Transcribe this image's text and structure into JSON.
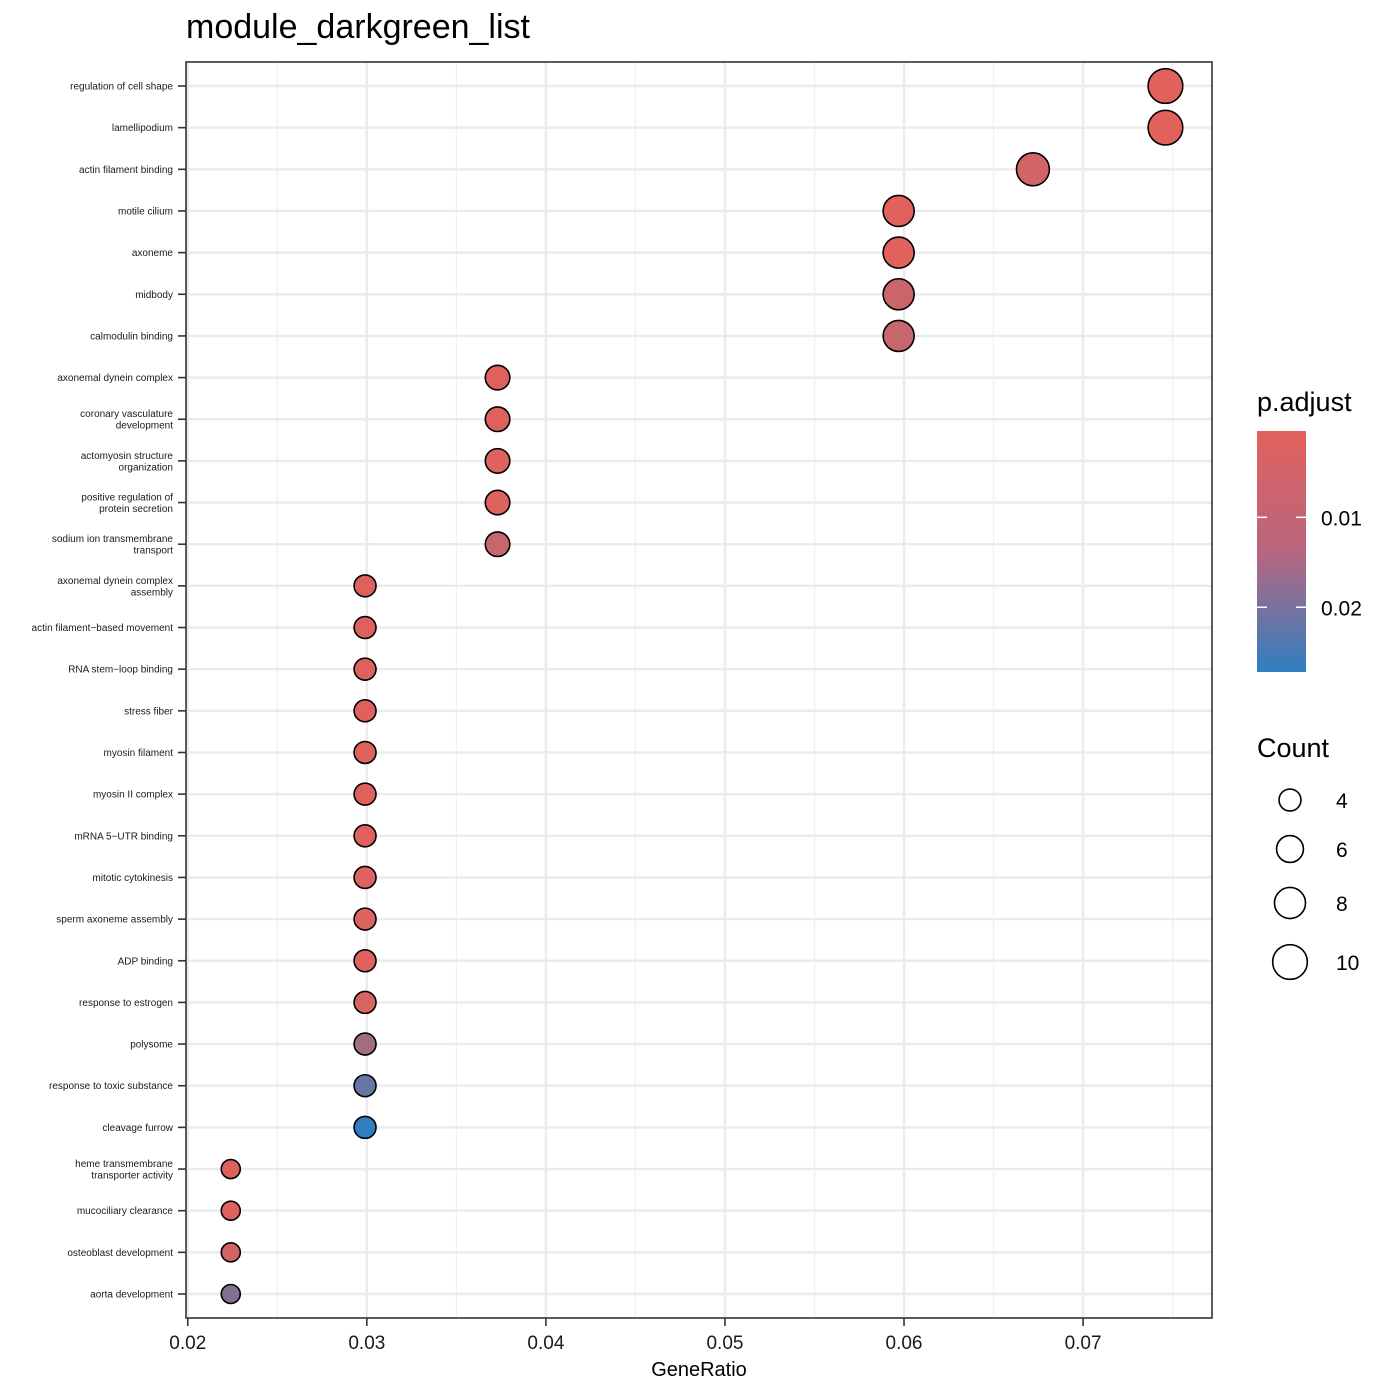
{
  "chart_data": {
    "type": "scatter",
    "title": "module_darkgreen_list",
    "xlabel": "GeneRatio",
    "ylabel": "",
    "xlim": [
      0.0199,
      0.0772
    ],
    "xticks": [
      0.02,
      0.03,
      0.04,
      0.05,
      0.06,
      0.07
    ],
    "x_tick_labels": [
      "0.02",
      "0.03",
      "0.04",
      "0.05",
      "0.06",
      "0.07"
    ],
    "grid": true,
    "legend_position": "right",
    "color_legend": {
      "title": "p.adjust",
      "labels": [
        "0.01",
        "0.02"
      ],
      "values": [
        0.01,
        0.02
      ],
      "range": [
        0.0004,
        0.0272
      ],
      "low_color": "#E2615D",
      "high_color": "#2F7FC1"
    },
    "size_legend": {
      "title": "Count",
      "labels": [
        "4",
        "6",
        "8",
        "10"
      ],
      "values": [
        4,
        6,
        8,
        10
      ]
    },
    "points": [
      {
        "term": "regulation of cell shape",
        "x": 0.0746,
        "count": 10,
        "p_adjust": 0.0005
      },
      {
        "term": "lamellipodium",
        "x": 0.0746,
        "count": 10,
        "p_adjust": 0.0005
      },
      {
        "term": "actin filament binding",
        "x": 0.0672,
        "count": 9,
        "p_adjust": 0.003
      },
      {
        "term": "motile cilium",
        "x": 0.0597,
        "count": 8,
        "p_adjust": 0.0005
      },
      {
        "term": "axoneme",
        "x": 0.0597,
        "count": 8,
        "p_adjust": 0.0005
      },
      {
        "term": "midbody",
        "x": 0.0597,
        "count": 8,
        "p_adjust": 0.004
      },
      {
        "term": "calmodulin binding",
        "x": 0.0597,
        "count": 8,
        "p_adjust": 0.0045
      },
      {
        "term": "axonemal dynein complex",
        "x": 0.0373,
        "count": 5,
        "p_adjust": 0.0008
      },
      {
        "term": "coronary vasculature\ndevelopment",
        "x": 0.0373,
        "count": 5,
        "p_adjust": 0.0008
      },
      {
        "term": "actomyosin structure\norganization",
        "x": 0.0373,
        "count": 5,
        "p_adjust": 0.001
      },
      {
        "term": "positive regulation of\nprotein secretion",
        "x": 0.0373,
        "count": 5,
        "p_adjust": 0.0012
      },
      {
        "term": "sodium ion transmembrane\ntransport",
        "x": 0.0373,
        "count": 5,
        "p_adjust": 0.0045
      },
      {
        "term": "axonemal dynein complex\nassembly",
        "x": 0.0299,
        "count": 4,
        "p_adjust": 0.0008
      },
      {
        "term": "actin filament−based movement",
        "x": 0.0299,
        "count": 4,
        "p_adjust": 0.0008
      },
      {
        "term": "RNA stem−loop binding",
        "x": 0.0299,
        "count": 4,
        "p_adjust": 0.0008
      },
      {
        "term": "stress fiber",
        "x": 0.0299,
        "count": 4,
        "p_adjust": 0.0008
      },
      {
        "term": "myosin filament",
        "x": 0.0299,
        "count": 4,
        "p_adjust": 0.0008
      },
      {
        "term": "myosin II complex",
        "x": 0.0299,
        "count": 4,
        "p_adjust": 0.0008
      },
      {
        "term": "mRNA 5−UTR binding",
        "x": 0.0299,
        "count": 4,
        "p_adjust": 0.0008
      },
      {
        "term": "mitotic cytokinesis",
        "x": 0.0299,
        "count": 4,
        "p_adjust": 0.001
      },
      {
        "term": "sperm axoneme assembly",
        "x": 0.0299,
        "count": 4,
        "p_adjust": 0.001
      },
      {
        "term": "ADP binding",
        "x": 0.0299,
        "count": 4,
        "p_adjust": 0.0012
      },
      {
        "term": "response to estrogen",
        "x": 0.0299,
        "count": 4,
        "p_adjust": 0.002
      },
      {
        "term": "polysome",
        "x": 0.0299,
        "count": 4,
        "p_adjust": 0.01
      },
      {
        "term": "response to toxic substance",
        "x": 0.0299,
        "count": 4,
        "p_adjust": 0.019
      },
      {
        "term": "cleavage furrow",
        "x": 0.0299,
        "count": 4,
        "p_adjust": 0.0272
      },
      {
        "term": "heme transmembrane\ntransporter activity",
        "x": 0.0224,
        "count": 3,
        "p_adjust": 0.0008
      },
      {
        "term": "mucociliary clearance",
        "x": 0.0224,
        "count": 3,
        "p_adjust": 0.001
      },
      {
        "term": "osteoblast development",
        "x": 0.0224,
        "count": 3,
        "p_adjust": 0.003
      },
      {
        "term": "aorta development",
        "x": 0.0224,
        "count": 3,
        "p_adjust": 0.015
      }
    ]
  }
}
